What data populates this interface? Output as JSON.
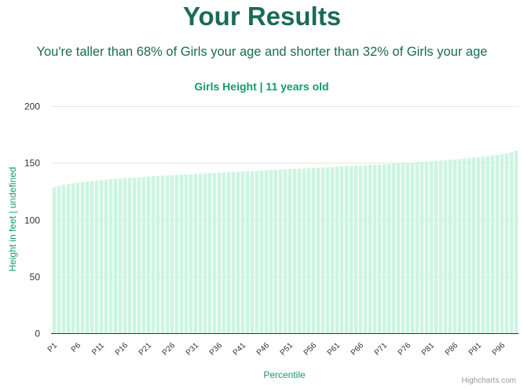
{
  "header": {
    "title": "Your Results",
    "subtitle": "You're taller than 68% of Girls your age and shorter than 32% of Girls your age"
  },
  "colors": {
    "accent": "#1a6b57",
    "chart_title": "#169b68",
    "bar_fill": "#ccf5e1",
    "grid": "#e6e6e6",
    "axis_line": "#333333",
    "tick_text": "#333333"
  },
  "chart_data": {
    "type": "bar",
    "title": "Girls Height | 11 years old",
    "xlabel": "Percentile",
    "ylabel": "Height in feet | undefined",
    "ylim": [
      0,
      200
    ],
    "yticks": [
      0,
      50,
      100,
      150,
      200
    ],
    "grid": true,
    "legend": "none",
    "categories": [
      "P1",
      "P2",
      "P3",
      "P4",
      "P5",
      "P6",
      "P7",
      "P8",
      "P9",
      "P10",
      "P11",
      "P12",
      "P13",
      "P14",
      "P15",
      "P16",
      "P17",
      "P18",
      "P19",
      "P20",
      "P21",
      "P22",
      "P23",
      "P24",
      "P25",
      "P26",
      "P27",
      "P28",
      "P29",
      "P30",
      "P31",
      "P32",
      "P33",
      "P34",
      "P35",
      "P36",
      "P37",
      "P38",
      "P39",
      "P40",
      "P41",
      "P42",
      "P43",
      "P44",
      "P45",
      "P46",
      "P47",
      "P48",
      "P49",
      "P50",
      "P51",
      "P52",
      "P53",
      "P54",
      "P55",
      "P56",
      "P57",
      "P58",
      "P59",
      "P60",
      "P61",
      "P62",
      "P63",
      "P64",
      "P65",
      "P66",
      "P67",
      "P68",
      "P69",
      "P70",
      "P71",
      "P72",
      "P73",
      "P74",
      "P75",
      "P76",
      "P77",
      "P78",
      "P79",
      "P80",
      "P81",
      "P82",
      "P83",
      "P84",
      "P85",
      "P86",
      "P87",
      "P88",
      "P89",
      "P90",
      "P91",
      "P92",
      "P93",
      "P94",
      "P95",
      "P96",
      "P97",
      "P98",
      "P99"
    ],
    "tick_labels": [
      "P1",
      "P6",
      "P11",
      "P16",
      "P21",
      "P26",
      "P31",
      "P36",
      "P41",
      "P46",
      "P51",
      "P56",
      "P61",
      "P66",
      "P71",
      "P76",
      "P81",
      "P86",
      "P91",
      "P96"
    ],
    "values": [
      128.5,
      129.7,
      130.6,
      131.4,
      132.0,
      132.6,
      133.1,
      133.6,
      134.0,
      134.4,
      134.8,
      135.2,
      135.5,
      135.8,
      136.2,
      136.5,
      136.8,
      137.1,
      137.3,
      137.6,
      137.9,
      138.1,
      138.4,
      138.6,
      138.9,
      139.1,
      139.4,
      139.6,
      139.8,
      140.1,
      140.3,
      140.5,
      140.7,
      140.9,
      141.1,
      141.4,
      141.6,
      141.8,
      142.0,
      142.2,
      142.4,
      142.6,
      142.8,
      143.0,
      143.2,
      143.4,
      143.7,
      143.9,
      144.1,
      144.3,
      144.5,
      144.7,
      144.9,
      145.1,
      145.3,
      145.5,
      145.7,
      145.9,
      146.1,
      146.3,
      146.6,
      146.8,
      147.0,
      147.2,
      147.4,
      147.6,
      147.9,
      148.1,
      148.3,
      148.6,
      148.8,
      149.0,
      149.3,
      149.5,
      149.8,
      150.0,
      150.3,
      150.6,
      150.8,
      151.1,
      151.4,
      151.7,
      152.0,
      152.3,
      152.6,
      153.0,
      153.3,
      153.7,
      154.1,
      154.5,
      154.9,
      155.4,
      155.9,
      156.4,
      157.0,
      157.7,
      158.5,
      159.4,
      160.7
    ]
  },
  "credits": "Highcharts.com"
}
